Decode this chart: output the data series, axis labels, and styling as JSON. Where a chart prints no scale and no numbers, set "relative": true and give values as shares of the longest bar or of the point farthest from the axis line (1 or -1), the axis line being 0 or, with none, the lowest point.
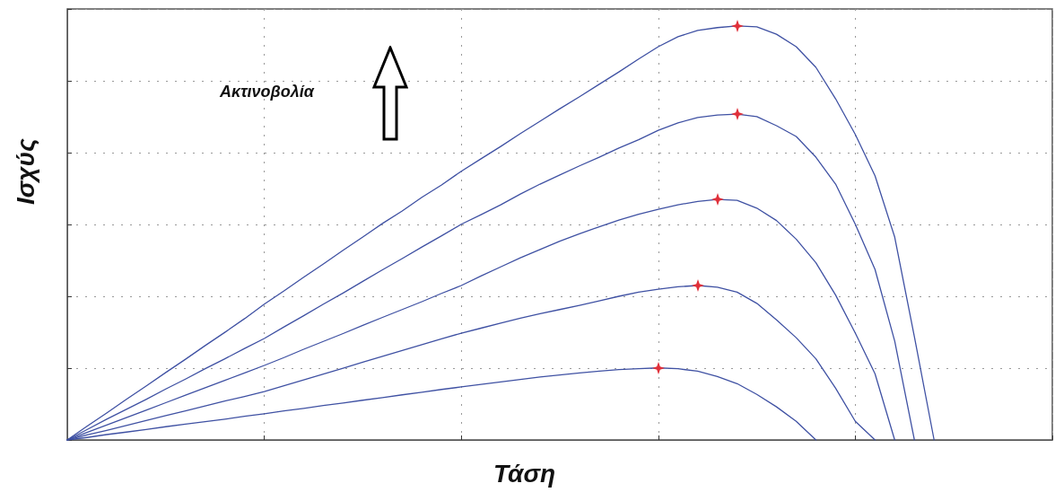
{
  "chart_data": {
    "type": "line",
    "relative": true,
    "xlabel": "Τάση",
    "ylabel": "Ισχύς",
    "annotations": [
      "Ακτινοβολία"
    ],
    "grid": true,
    "marker": "none",
    "line_style": "solid",
    "categories": [
      null,
      null,
      null,
      null,
      null,
      null,
      null,
      null,
      null,
      null,
      null,
      null,
      null,
      null,
      null,
      null,
      null,
      null,
      null,
      null,
      null,
      null,
      null,
      null,
      null,
      null,
      null,
      null,
      null,
      null,
      null,
      null,
      null,
      null,
      null,
      null,
      null,
      null,
      null,
      null,
      null,
      null,
      null,
      null,
      null,
      null,
      null,
      null,
      null,
      null,
      null
    ],
    "series": [
      {
        "color": "#3f51a3",
        "values": [
          0,
          0.033,
          0.065,
          0.098,
          0.13,
          0.163,
          0.195,
          0.228,
          0.26,
          0.293,
          0.328,
          0.36,
          0.393,
          0.425,
          0.458,
          0.49,
          0.523,
          0.553,
          0.586,
          0.616,
          0.649,
          0.679,
          0.709,
          0.74,
          0.77,
          0.8,
          0.829,
          0.859,
          0.889,
          0.92,
          0.95,
          0.974,
          0.989,
          0.996,
          1.0,
          0.998,
          0.98,
          0.95,
          0.9,
          0.824,
          0.738,
          0.638,
          0.49,
          0.249,
          0,
          null,
          null,
          null,
          null,
          null,
          null
        ]
      },
      {
        "color": "#3f51a3",
        "values": [
          0,
          0.025,
          0.05,
          0.074,
          0.098,
          0.123,
          0.147,
          0.172,
          0.196,
          0.221,
          0.245,
          0.273,
          0.3,
          0.328,
          0.355,
          0.383,
          0.411,
          0.438,
          0.466,
          0.493,
          0.521,
          0.544,
          0.568,
          0.594,
          0.618,
          0.64,
          0.662,
          0.683,
          0.705,
          0.725,
          0.748,
          0.766,
          0.779,
          0.785,
          0.787,
          0.781,
          0.759,
          0.733,
          0.683,
          0.618,
          0.521,
          0.412,
          0.239,
          0,
          null,
          null,
          null,
          null,
          null,
          null,
          null
        ]
      },
      {
        "color": "#3f51a3",
        "values": [
          0,
          0.018,
          0.036,
          0.054,
          0.072,
          0.09,
          0.108,
          0.126,
          0.144,
          0.162,
          0.18,
          0.199,
          0.219,
          0.238,
          0.257,
          0.277,
          0.296,
          0.315,
          0.334,
          0.354,
          0.373,
          0.396,
          0.418,
          0.44,
          0.46,
          0.48,
          0.498,
          0.515,
          0.531,
          0.545,
          0.557,
          0.568,
          0.576,
          0.581,
          0.579,
          0.56,
          0.53,
          0.485,
          0.428,
          0.35,
          0.258,
          0.16,
          0,
          null,
          null,
          null,
          null,
          null,
          null,
          null,
          null
        ]
      },
      {
        "color": "#3f51a3",
        "values": [
          0,
          0.012,
          0.023,
          0.035,
          0.047,
          0.059,
          0.07,
          0.082,
          0.094,
          0.105,
          0.117,
          0.131,
          0.145,
          0.159,
          0.173,
          0.188,
          0.202,
          0.216,
          0.23,
          0.244,
          0.258,
          0.27,
          0.282,
          0.294,
          0.305,
          0.315,
          0.325,
          0.336,
          0.347,
          0.357,
          0.364,
          0.37,
          0.373,
          0.369,
          0.357,
          0.33,
          0.29,
          0.247,
          0.196,
          0.125,
          0.045,
          0,
          null,
          null,
          null,
          null,
          null,
          null,
          null,
          null,
          null
        ]
      },
      {
        "color": "#3f51a3",
        "values": [
          0,
          0.006,
          0.013,
          0.019,
          0.025,
          0.032,
          0.038,
          0.044,
          0.05,
          0.057,
          0.063,
          0.07,
          0.076,
          0.083,
          0.089,
          0.096,
          0.102,
          0.109,
          0.115,
          0.122,
          0.128,
          0.134,
          0.14,
          0.146,
          0.152,
          0.157,
          0.162,
          0.166,
          0.17,
          0.172,
          0.174,
          0.172,
          0.166,
          0.153,
          0.136,
          0.11,
          0.08,
          0.045,
          0,
          null,
          null,
          null,
          null,
          null,
          null,
          null,
          null,
          null,
          null,
          null,
          null
        ]
      }
    ]
  }
}
